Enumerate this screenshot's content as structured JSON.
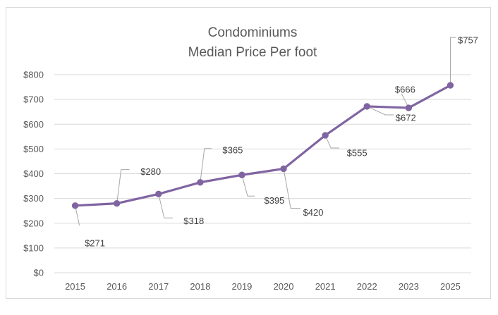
{
  "chart_data": {
    "type": "line",
    "title_lines": [
      "Condominiums",
      "Median Price Per foot"
    ],
    "xlabel": "",
    "ylabel": "",
    "categories": [
      "2015",
      "2016",
      "2017",
      "2018",
      "2019",
      "2020",
      "2021",
      "2022",
      "2023",
      "2025"
    ],
    "series": [
      {
        "values": [
          271,
          280,
          318,
          365,
          395,
          420,
          555,
          672,
          666,
          757
        ],
        "labels": [
          "$271",
          "$280",
          "$318",
          "$365",
          "$395",
          "$420",
          "$555",
          "$672",
          "$666",
          "$757"
        ],
        "color": "#8064a2"
      }
    ],
    "ylim": [
      0,
      800
    ],
    "yticks": [
      0,
      100,
      200,
      300,
      400,
      500,
      600,
      700,
      800
    ],
    "ytick_labels": [
      "$0",
      "$100",
      "$200",
      "$300",
      "$400",
      "$500",
      "$600",
      "$700",
      "$800"
    ],
    "grid": true,
    "legend": "none"
  }
}
